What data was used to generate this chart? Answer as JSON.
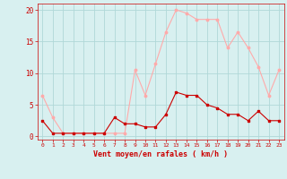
{
  "hours": [
    0,
    1,
    2,
    3,
    4,
    5,
    6,
    7,
    8,
    9,
    10,
    11,
    12,
    13,
    14,
    15,
    16,
    17,
    18,
    19,
    20,
    21,
    22,
    23
  ],
  "vent_moyen": [
    2.5,
    0.5,
    0.5,
    0.5,
    0.5,
    0.5,
    0.5,
    3.0,
    2.0,
    2.0,
    1.5,
    1.5,
    3.5,
    7.0,
    6.5,
    6.5,
    5.0,
    4.5,
    3.5,
    3.5,
    2.5,
    4.0,
    2.5,
    2.5
  ],
  "vent_rafales": [
    6.5,
    3.0,
    0.5,
    0.5,
    0.5,
    0.5,
    0.5,
    0.5,
    0.5,
    10.5,
    6.5,
    11.5,
    16.5,
    20.0,
    19.5,
    18.5,
    18.5,
    18.5,
    14.0,
    16.5,
    14.0,
    11.0,
    6.5,
    10.5
  ],
  "color_moyen": "#cc0000",
  "color_rafales": "#ffaaaa",
  "background_color": "#d8f0f0",
  "grid_color": "#b0d8d8",
  "xlabel": "Vent moyen/en rafales ( km/h )",
  "tick_color": "#cc0000",
  "ylim": [
    -0.5,
    21
  ],
  "yticks": [
    0,
    5,
    10,
    15,
    20
  ]
}
